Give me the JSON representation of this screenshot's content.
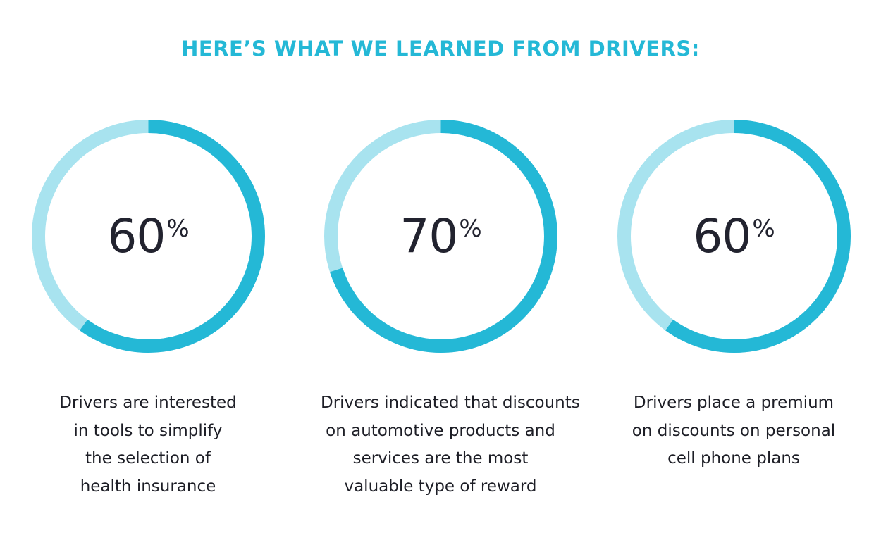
{
  "header": {
    "title": "HERE’S WHAT WE LEARNED FROM DRIVERS:"
  },
  "colors": {
    "accent": "#24b8d6",
    "track": "#a8e3ef",
    "text": "#22232f"
  },
  "stats": [
    {
      "value": "60",
      "symbol": "%",
      "description_lines": [
        "Drivers are interested",
        "in tools to simplify",
        "the selection of",
        "health insurance"
      ]
    },
    {
      "value": "70",
      "symbol": "%",
      "description_lines": [
        "Drivers indicated that discounts",
        "on automotive products and",
        "services are the most",
        "valuable type of reward"
      ]
    },
    {
      "value": "60",
      "symbol": "%",
      "description_lines": [
        "Drivers place a premium",
        "on discounts on personal",
        "cell phone plans"
      ]
    }
  ],
  "chart_data": [
    {
      "type": "pie",
      "categories": [
        "Drivers are interested in tools to simplify the selection of health insurance"
      ],
      "values": [
        60
      ],
      "max": 100
    },
    {
      "type": "pie",
      "categories": [
        "Drivers indicated that discounts on automotive products and services are the most valuable type of reward"
      ],
      "values": [
        70
      ],
      "max": 100
    },
    {
      "type": "pie",
      "categories": [
        "Drivers place a premium on discounts on personal cell phone plans"
      ],
      "values": [
        60
      ],
      "max": 100
    }
  ]
}
